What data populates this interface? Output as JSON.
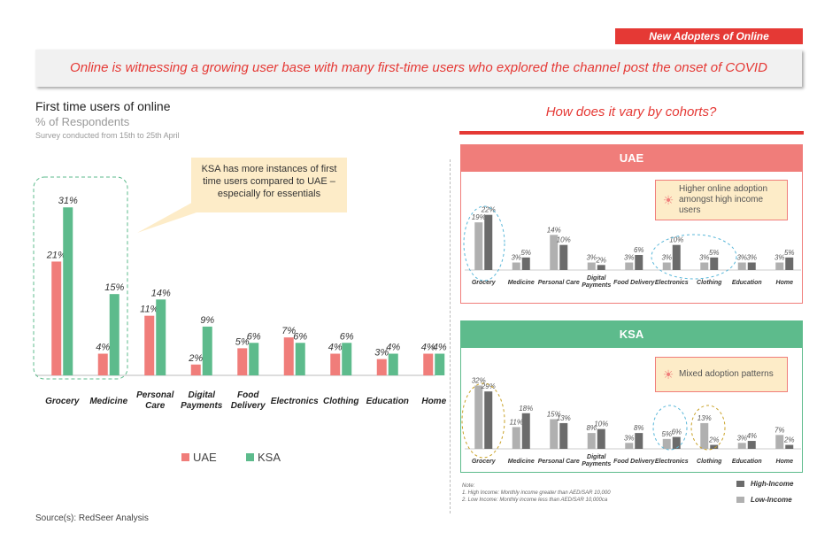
{
  "header": {
    "tag": "New Adopters of Online",
    "banner": "Online is witnessing  a growing user base with many first-time users who explored the channel post the onset of COVID"
  },
  "left": {
    "title": "First time users of online",
    "subtitle": "% of Respondents",
    "survey": "Survey conducted from 15th to 25th April",
    "callout": "KSA has more instances of first time users compared to UAE – especially for essentials",
    "source": "Source(s): RedSeer Analysis"
  },
  "right": {
    "title": "How does it vary by cohorts?",
    "uae_header": "UAE",
    "ksa_header": "KSA",
    "uae_insight": "Higher online adoption amongst high income users",
    "ksa_insight": "Mixed adoption patterns",
    "note_title": "Note:",
    "note1": "1.  High Income: Monthly income greater than AED/SAR 10,000",
    "note2": "2.  Low Income: Monthly income less than AED/SAR 10,000ca",
    "legend_high": "High-Income",
    "legend_low": "Low-Income"
  },
  "colors": {
    "accent": "#e53935",
    "uae": "#f07d7a",
    "ksa": "#5dbb8c",
    "high": "#6b6b6b",
    "low": "#b0b0b0",
    "highlight_blue": "#59b7d9",
    "highlight_gold": "#c9a227"
  },
  "chart_data": [
    {
      "type": "bar",
      "categories": [
        "Grocery",
        "Medicine",
        "Personal Care",
        "Digital Payments",
        "Food Delivery",
        "Electronics",
        "Clothing",
        "Education",
        "Home"
      ],
      "series": [
        {
          "name": "UAE",
          "values": [
            21,
            4,
            11,
            2,
            5,
            7,
            4,
            3,
            4
          ]
        },
        {
          "name": "KSA",
          "values": [
            31,
            15,
            14,
            9,
            6,
            6,
            6,
            4,
            4
          ]
        }
      ],
      "ylim": [
        0,
        33
      ],
      "legend": "bottom"
    },
    {
      "type": "bar",
      "title": "UAE",
      "categories": [
        "Grocery",
        "Medicine",
        "Personal Care",
        "Digital Payments",
        "Food Delivery",
        "Electronics",
        "Clothing",
        "Education",
        "Home"
      ],
      "series": [
        {
          "name": "Low-Income",
          "values": [
            19,
            3,
            14,
            3,
            3,
            3,
            3,
            3,
            3
          ]
        },
        {
          "name": "High-Income",
          "values": [
            22,
            5,
            10,
            2,
            6,
            10,
            5,
            3,
            5
          ]
        }
      ],
      "ylim": [
        0,
        24
      ]
    },
    {
      "type": "bar",
      "title": "KSA",
      "categories": [
        "Grocery",
        "Medicine",
        "Personal Care",
        "Digital Payments",
        "Food Delivery",
        "Electronics",
        "Clothing",
        "Education",
        "Home"
      ],
      "series": [
        {
          "name": "Low-Income",
          "values": [
            32,
            11,
            15,
            8,
            3,
            5,
            13,
            3,
            7
          ]
        },
        {
          "name": "High-Income",
          "values": [
            29,
            18,
            13,
            10,
            8,
            6,
            2,
            4,
            2
          ]
        }
      ],
      "ylim": [
        0,
        34
      ]
    }
  ]
}
